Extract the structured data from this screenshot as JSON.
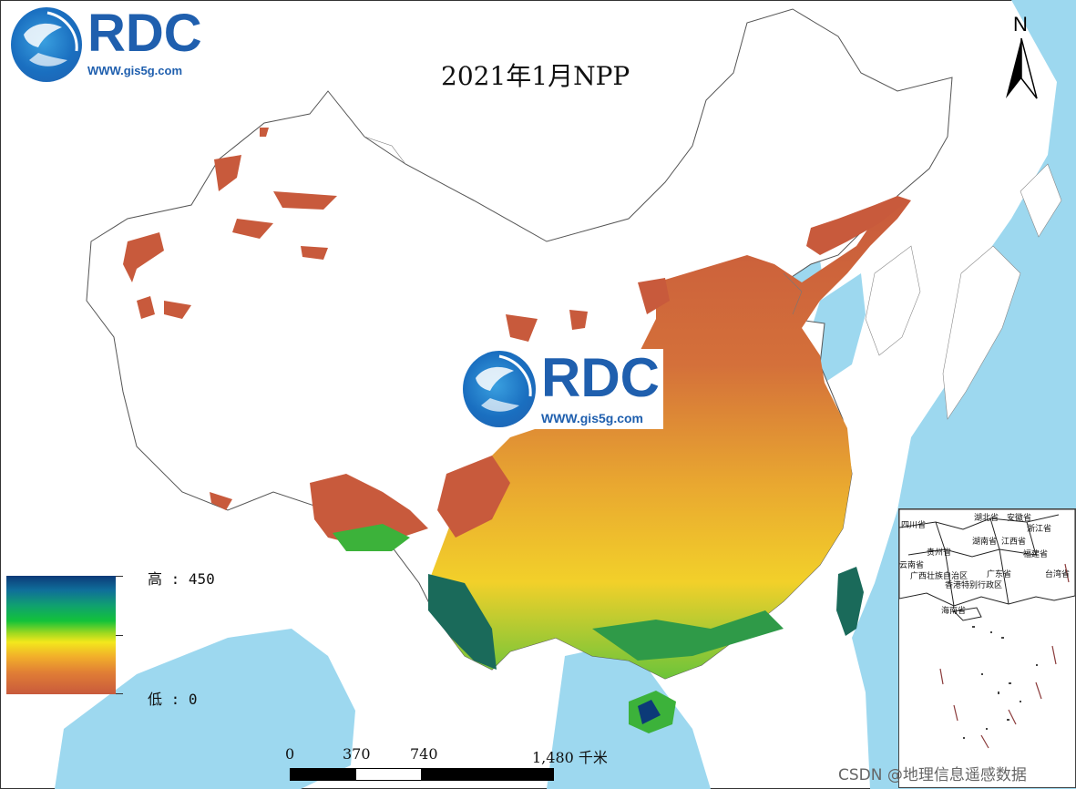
{
  "map": {
    "title": "2021年1月NPP",
    "colors": {
      "sea": "#9dd8ef",
      "land": "#ffffff",
      "low": "#c85a3c",
      "mid": "#f2c028",
      "green": "#3cb23a",
      "high": "#0c3a78",
      "boundary": "#555555"
    }
  },
  "logo": {
    "word": "RDC",
    "url": "WWW.gis5g.com"
  },
  "north_arrow": {
    "label": "N",
    "icon": "north-arrow-icon"
  },
  "legend": {
    "high_label": "高 : 450",
    "low_label": "低 : 0",
    "max": 450,
    "min": 0
  },
  "scale_bar": {
    "labels": [
      "0",
      "370",
      "740",
      "1,480 千米"
    ]
  },
  "inset": {
    "labels": [
      "四川省",
      "湖北省",
      "安徽省",
      "浙江省",
      "湖南省",
      "江西省",
      "贵州省",
      "福建省",
      "云南省",
      "广西壮族自治区",
      "广东省",
      "香港特别行政区",
      "台湾省",
      "海南省"
    ]
  },
  "watermark": "CSDN @地理信息遥感数据"
}
